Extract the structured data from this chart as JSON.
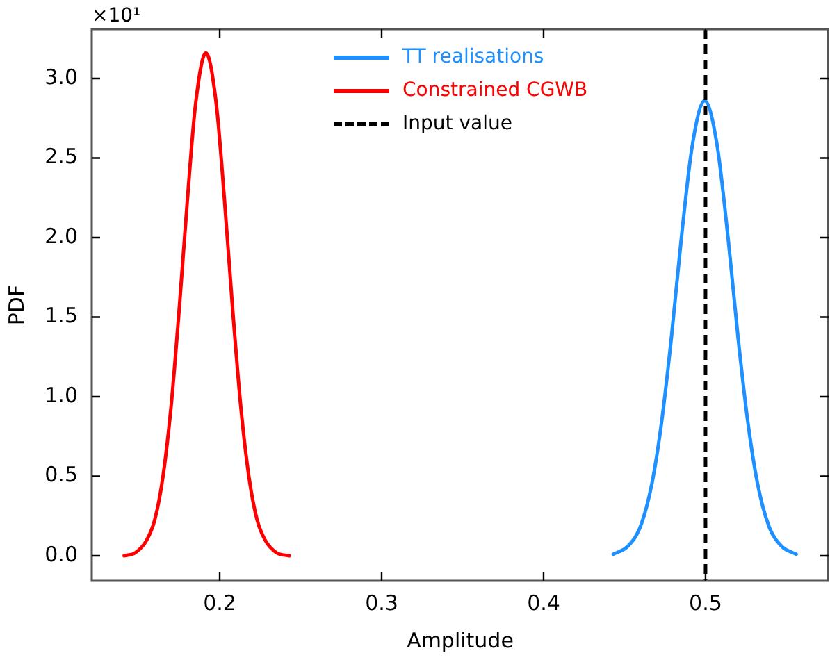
{
  "chart_data": {
    "type": "line",
    "xlabel": "Amplitude",
    "ylabel": "PDF",
    "annotations": [
      "×10¹"
    ],
    "xlim": [
      0.121,
      0.576
    ],
    "xticks": [
      0.2,
      0.3,
      0.4,
      0.5
    ],
    "ylim": [
      -0.157,
      3.31
    ],
    "yticks": [
      {
        "value": 0,
        "label": "0.0"
      },
      {
        "value": 0.5,
        "label": "0.5"
      },
      {
        "value": 1,
        "label": "1.0"
      },
      {
        "value": 1.5,
        "label": "1.5"
      },
      {
        "value": 2,
        "label": "2.0"
      },
      {
        "value": 2.5,
        "label": "2.5"
      },
      {
        "value": 3,
        "label": "3.0"
      }
    ],
    "legend": "top",
    "marker": "none",
    "line_style": "solid",
    "series": [
      {
        "name": "TT realisations",
        "color": "#1e90ff",
        "x": [
          0.443,
          0.452,
          0.46,
          0.467,
          0.473,
          0.479,
          0.485,
          0.492,
          0.4995,
          0.507,
          0.514,
          0.52,
          0.526,
          0.532,
          0.539,
          0.547,
          0.556
        ],
        "values": [
          0.01,
          0.06,
          0.19,
          0.46,
          0.85,
          1.38,
          1.99,
          2.59,
          2.86,
          2.59,
          1.99,
          1.38,
          0.85,
          0.46,
          0.19,
          0.06,
          0.01
        ]
      },
      {
        "name": "Constrained CGWB",
        "color": "#ff0000",
        "x": [
          0.141,
          0.148,
          0.155,
          0.16,
          0.165,
          0.17,
          0.175,
          0.18,
          0.185,
          0.1915,
          0.198,
          0.203,
          0.208,
          0.213,
          0.218,
          0.223,
          0.228,
          0.235,
          0.243
        ],
        "values": [
          0,
          0.02,
          0.1,
          0.23,
          0.5,
          0.94,
          1.55,
          2.23,
          2.83,
          3.16,
          2.83,
          2.23,
          1.55,
          0.94,
          0.5,
          0.23,
          0.1,
          0.02,
          0
        ]
      }
    ],
    "ref_lines": [
      {
        "axis": "x",
        "value": 0.5,
        "label": "Input value",
        "color": "#000000",
        "line_style": "dashed"
      }
    ]
  }
}
